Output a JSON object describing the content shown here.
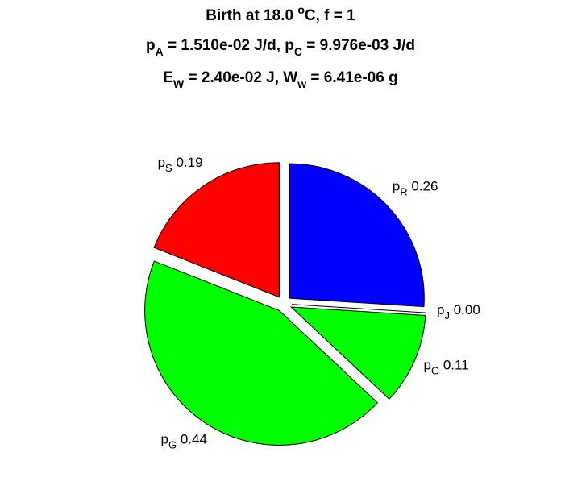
{
  "chart_data": {
    "type": "pie",
    "title": [
      [
        {
          "text": "Birth at 18.0 "
        },
        {
          "text": "o",
          "script": "sup"
        },
        {
          "text": "C, f = 1"
        }
      ],
      [
        {
          "text": "p"
        },
        {
          "text": "A",
          "script": "sub"
        },
        {
          "text": " = 1.510e-02 J/d, p"
        },
        {
          "text": "C",
          "script": "sub"
        },
        {
          "text": " = 9.976e-03 J/d"
        }
      ],
      [
        {
          "text": "E"
        },
        {
          "text": "W",
          "script": "sub"
        },
        {
          "text": " = 2.40e-02 J, W"
        },
        {
          "text": "w",
          "script": "sub"
        },
        {
          "text": " = 6.41e-06 g"
        }
      ]
    ],
    "labels": [
      {
        "main": "p",
        "sub": "R"
      },
      {
        "main": "p",
        "sub": "J"
      },
      {
        "main": "p",
        "sub": "G"
      },
      {
        "main": "p",
        "sub": "G"
      },
      {
        "main": "p",
        "sub": "S"
      }
    ],
    "values": [
      0.26,
      0.0,
      0.11,
      0.44,
      0.19
    ],
    "value_labels": [
      "0.26",
      "0.00",
      "0.11",
      "0.44",
      "0.19"
    ],
    "colors": [
      "#0000ff",
      "#ffffff",
      "#00ff00",
      "#00ff00",
      "#ff0000"
    ],
    "start_angle": 90,
    "direction": "clockwise",
    "exploded": true
  }
}
